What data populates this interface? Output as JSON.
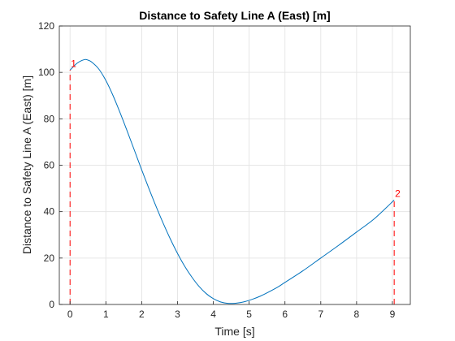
{
  "chart_data": {
    "type": "line",
    "title": "Distance to Safety Line A (East) [m]",
    "xlabel": "Time [s]",
    "ylabel": "Distance to Safety Line A (East) [m]",
    "xlim": [
      -0.3,
      9.5
    ],
    "ylim": [
      0,
      120
    ],
    "xticks": [
      0,
      1,
      2,
      3,
      4,
      5,
      6,
      7,
      8,
      9
    ],
    "yticks": [
      0,
      20,
      40,
      60,
      80,
      100,
      120
    ],
    "grid": true,
    "series_color": "#0072BD",
    "series": [
      {
        "x": [
          0,
          0.2,
          0.4,
          0.5,
          0.6,
          0.8,
          1.0,
          1.2,
          1.4,
          1.6,
          1.8,
          2.0,
          2.2,
          2.4,
          2.6,
          2.8,
          3.0,
          3.2,
          3.4,
          3.6,
          3.8,
          4.0,
          4.2,
          4.4,
          4.6,
          4.75,
          4.9,
          5.1,
          5.3,
          5.5,
          5.8,
          6.0,
          6.5,
          7.0,
          7.5,
          8.0,
          8.5,
          9.05
        ],
        "y": [
          101,
          104,
          105.5,
          105.3,
          104.5,
          101.5,
          96.5,
          90,
          82.5,
          74.5,
          66.3,
          58,
          50,
          42.3,
          35,
          28.2,
          22,
          16.5,
          11.8,
          7.8,
          4.7,
          2.5,
          1.1,
          0.5,
          0.5,
          0.8,
          1.3,
          2.3,
          3.5,
          5,
          7.5,
          9.5,
          14.5,
          20,
          25.5,
          31.2,
          37,
          45
        ]
      }
    ],
    "markers": [
      {
        "label": "1",
        "x": 0,
        "y": 101
      },
      {
        "label": "2",
        "x": 9.05,
        "y": 45
      }
    ],
    "marker_color": "#FF0000"
  }
}
